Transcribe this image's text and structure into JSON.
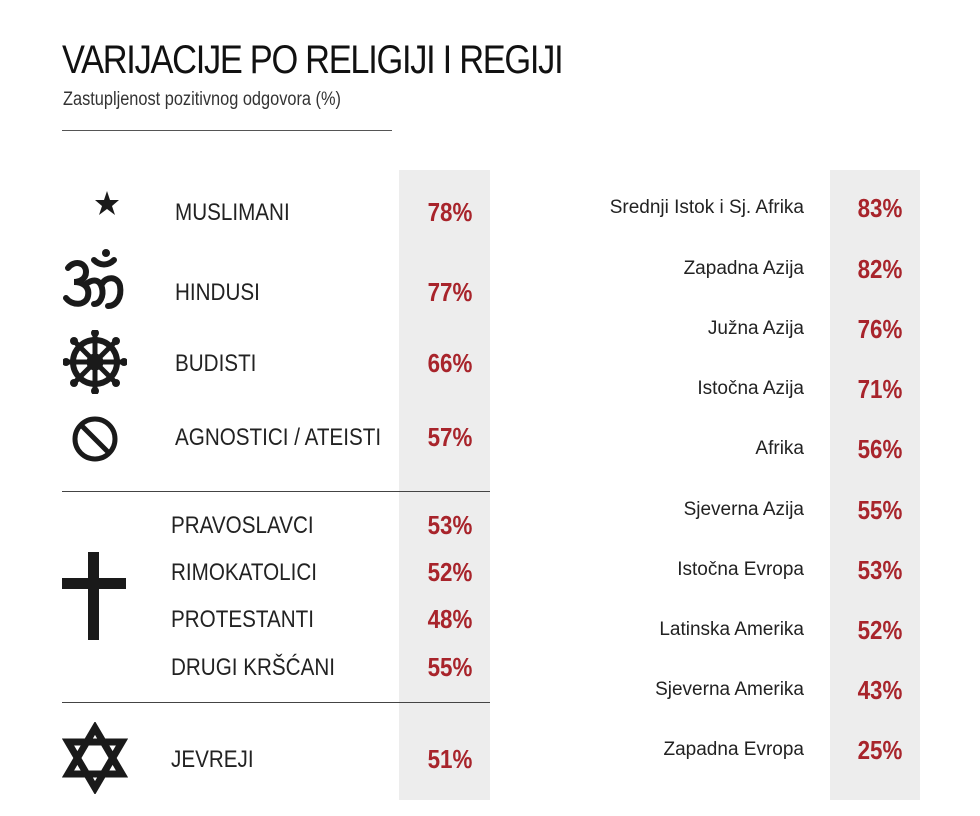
{
  "title": "VARIJACIJE PO RELIGIJI I REGIJI",
  "subtitle": "Zastupljenost pozitivnog odgovora (%)",
  "chart_data": [
    {
      "type": "table",
      "rows": [
        {
          "label": "MUSLIMANI",
          "value": 78,
          "value_text": "78%",
          "icon": "star-crescent-icon"
        },
        {
          "label": "HINDUSI",
          "value": 77,
          "value_text": "77%",
          "icon": "om-icon"
        },
        {
          "label": "BUDISTI",
          "value": 66,
          "value_text": "66%",
          "icon": "dharma-wheel-icon"
        },
        {
          "label": "AGNOSTICI / ATEISTI",
          "value": 57,
          "value_text": "57%",
          "icon": "prohibition-icon"
        },
        {
          "label": "PRAVOSLAVCI",
          "value": 53,
          "value_text": "53%",
          "icon": "cross-icon"
        },
        {
          "label": "RIMOKATOLICI",
          "value": 52,
          "value_text": "52%",
          "icon": "cross-icon"
        },
        {
          "label": "PROTESTANTI",
          "value": 48,
          "value_text": "48%",
          "icon": "cross-icon"
        },
        {
          "label": "DRUGI KRŠĆANI",
          "value": 55,
          "value_text": "55%",
          "icon": "cross-icon"
        },
        {
          "label": "JEVREJI",
          "value": 51,
          "value_text": "51%",
          "icon": "star-of-david-icon"
        }
      ]
    },
    {
      "type": "table",
      "rows": [
        {
          "label": "Srednji Istok i Sj. Afrika",
          "value": 83,
          "value_text": "83%"
        },
        {
          "label": "Zapadna Azija",
          "value": 82,
          "value_text": "82%"
        },
        {
          "label": "Južna Azija",
          "value": 76,
          "value_text": "76%"
        },
        {
          "label": "Istočna Azija",
          "value": 71,
          "value_text": "71%"
        },
        {
          "label": "Afrika",
          "value": 56,
          "value_text": "56%"
        },
        {
          "label": "Sjeverna Azija",
          "value": 55,
          "value_text": "55%"
        },
        {
          "label": "Istočna Evropa",
          "value": 53,
          "value_text": "53%"
        },
        {
          "label": "Latinska Amerika",
          "value": 52,
          "value_text": "52%"
        },
        {
          "label": "Sjeverna Amerika",
          "value": 43,
          "value_text": "43%"
        },
        {
          "label": "Zapadna Evropa",
          "value": 25,
          "value_text": "25%"
        }
      ]
    }
  ],
  "colors": {
    "value_text": "#a8242b",
    "column_background": "#ededed"
  }
}
